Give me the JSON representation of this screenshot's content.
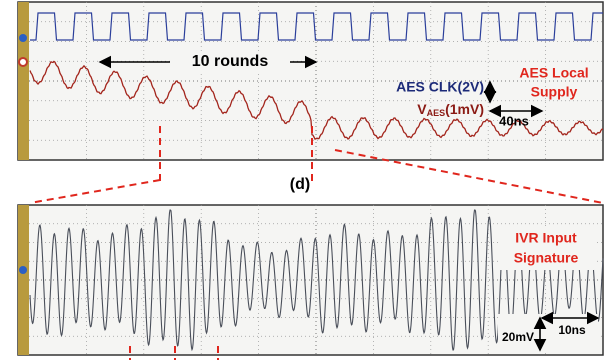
{
  "top_panel": {
    "rounds": "10 rounds",
    "clk_label": "AES CLK(2V)",
    "vaes_main": "V",
    "vaes_sub": "AES",
    "vaes_unit": "(1mV)",
    "time_scale": "40ns",
    "supply_line1": "AES Local",
    "supply_line2": "Supply"
  },
  "panel_label": "(d)",
  "bottom_panel": {
    "signature_line1": "IVR Input",
    "signature_line2": "Signature",
    "amp_scale": "20mV",
    "time_scale": "10ns"
  }
}
